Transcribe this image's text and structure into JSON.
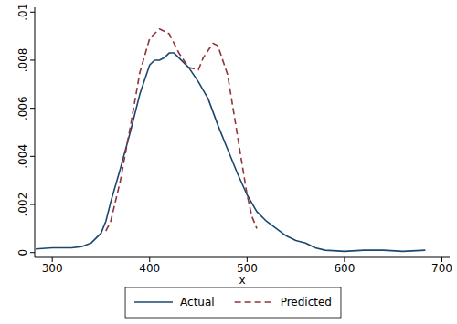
{
  "chart_data": {
    "type": "line",
    "x_label": "x",
    "xlim": [
      282,
      708
    ],
    "ylim": [
      -0.0002,
      0.0102
    ],
    "xticks": [
      300,
      400,
      500,
      600,
      700
    ],
    "yticks": [
      0,
      {
        "value": 0.002,
        "label": ".002"
      },
      {
        "value": 0.004,
        "label": ".004"
      },
      {
        "value": 0.006,
        "label": ".006"
      },
      {
        "value": 0.008,
        "label": ".008"
      },
      {
        "value": 0.01,
        "label": ".01"
      }
    ],
    "grid": false,
    "legend": "bottom",
    "series": [
      {
        "name": "Actual",
        "color": "#1a476f",
        "line_style": "solid",
        "x": [
          283,
          300,
          320,
          330,
          340,
          350,
          355,
          360,
          370,
          380,
          390,
          400,
          405,
          410,
          415,
          420,
          425,
          430,
          440,
          450,
          460,
          470,
          480,
          490,
          500,
          510,
          520,
          530,
          540,
          550,
          560,
          570,
          580,
          600,
          620,
          640,
          660,
          683
        ],
        "values": [
          0.00015,
          0.0002,
          0.0002,
          0.00025,
          0.0004,
          0.0008,
          0.0013,
          0.0021,
          0.0035,
          0.005,
          0.0066,
          0.0078,
          0.008,
          0.008,
          0.0081,
          0.0083,
          0.0083,
          0.0081,
          0.0077,
          0.0071,
          0.0064,
          0.0053,
          0.0043,
          0.0033,
          0.0024,
          0.0017,
          0.0013,
          0.001,
          0.0007,
          0.0005,
          0.0004,
          0.0002,
          0.0001,
          5e-05,
          0.0001,
          0.0001,
          5e-05,
          0.0001
        ]
      },
      {
        "name": "Predicted",
        "color": "#90353b",
        "line_style": "dashed",
        "x": [
          355,
          360,
          370,
          380,
          390,
          400,
          410,
          420,
          430,
          440,
          450,
          455,
          465,
          470,
          480,
          490,
          500,
          505,
          510
        ],
        "values": [
          0.0009,
          0.0013,
          0.003,
          0.0052,
          0.0075,
          0.0089,
          0.0093,
          0.0091,
          0.0083,
          0.0077,
          0.0076,
          0.0081,
          0.0087,
          0.0086,
          0.0074,
          0.0049,
          0.0024,
          0.0015,
          0.001
        ]
      }
    ]
  }
}
